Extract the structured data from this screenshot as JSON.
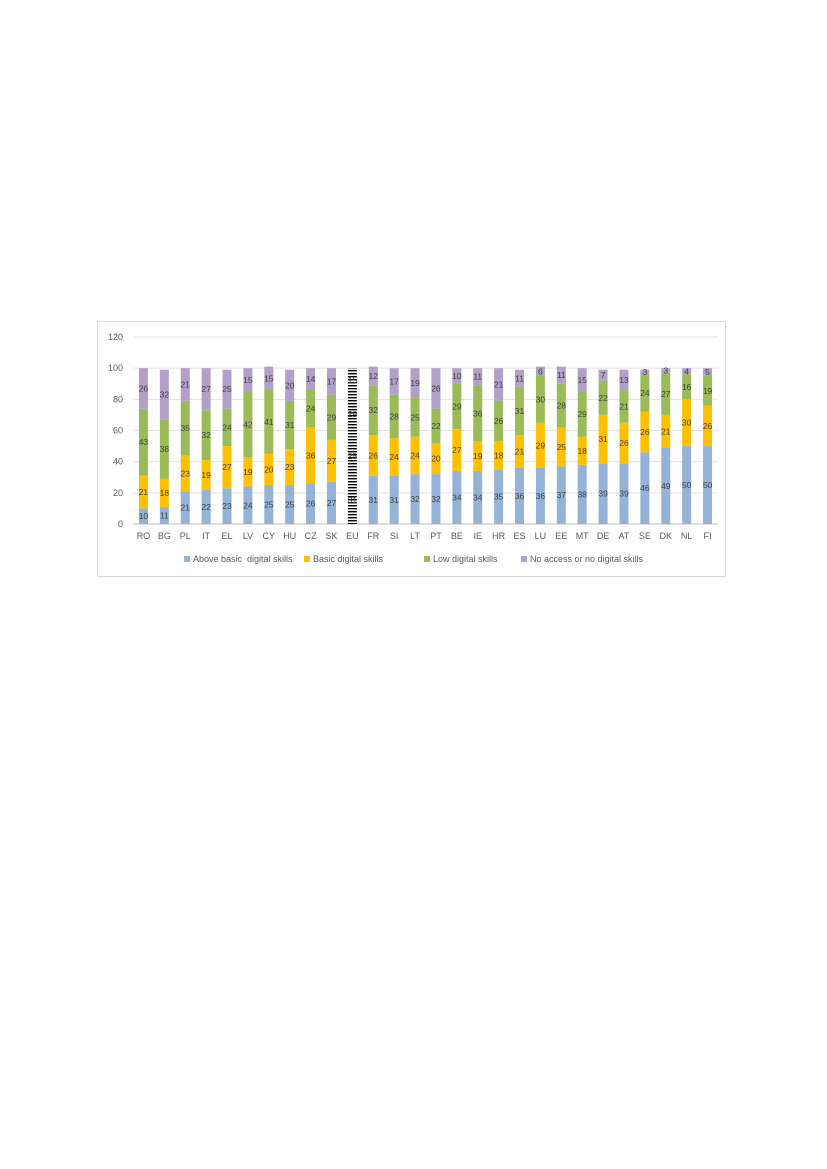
{
  "chart_data": {
    "type": "bar",
    "stacked": true,
    "ylim": [
      0,
      120
    ],
    "yticks": [
      0,
      20,
      40,
      60,
      80,
      100,
      120
    ],
    "grid": true,
    "legend_position": "bottom",
    "categories": [
      "RO",
      "BG",
      "PL",
      "IT",
      "EL",
      "LV",
      "CY",
      "HU",
      "CZ",
      "SK",
      "EU",
      "FR",
      "SI",
      "LT",
      "PT",
      "BE",
      "IE",
      "HR",
      "ES",
      "LU",
      "EE",
      "MT",
      "DE",
      "AT",
      "SE",
      "DK",
      "NL",
      "FI"
    ],
    "highlight_category": "EU",
    "series": [
      {
        "name": "Above basic  digital skills",
        "color": "#95b3d7",
        "values": [
          10,
          11,
          21,
          22,
          23,
          24,
          25,
          25,
          26,
          27,
          31,
          31,
          31,
          32,
          32,
          34,
          34,
          35,
          36,
          36,
          37,
          38,
          39,
          39,
          46,
          49,
          50,
          50
        ]
      },
      {
        "name": "Basic digital skills",
        "color": "#ffc000",
        "values": [
          21,
          18,
          23,
          19,
          27,
          19,
          20,
          23,
          36,
          27,
          25,
          26,
          24,
          24,
          20,
          27,
          19,
          18,
          21,
          29,
          25,
          18,
          31,
          26,
          26,
          21,
          30,
          26
        ]
      },
      {
        "name": "Low digital skills",
        "color": "#9bbb59",
        "values": [
          43,
          38,
          35,
          32,
          24,
          42,
          41,
          31,
          24,
          29,
          29,
          32,
          28,
          25,
          22,
          29,
          36,
          26,
          31,
          30,
          28,
          29,
          22,
          21,
          24,
          27,
          16,
          19
        ]
      },
      {
        "name": "No access or no digital skills",
        "color": "#b1a0c7",
        "values": [
          26,
          32,
          21,
          27,
          25,
          15,
          15,
          20,
          14,
          17,
          15,
          12,
          17,
          19,
          26,
          10,
          11,
          21,
          11,
          6,
          11,
          15,
          7,
          13,
          3,
          3,
          4,
          5
        ]
      }
    ]
  }
}
